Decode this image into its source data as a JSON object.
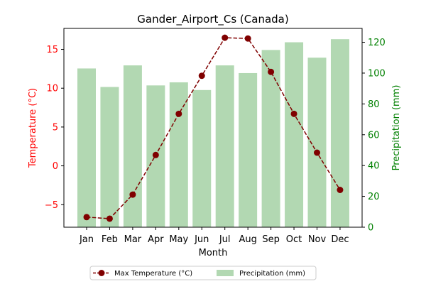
{
  "chart_data": {
    "type": "bar",
    "title": "Gander_Airport_Cs (Canada)",
    "xlabel": "Month",
    "ylabel_left": "Temperature (°C)",
    "ylabel_right": "Precipitation (mm)",
    "categories": [
      "Jan",
      "Feb",
      "Mar",
      "Apr",
      "May",
      "Jun",
      "Jul",
      "Aug",
      "Sep",
      "Oct",
      "Nov",
      "Dec"
    ],
    "left_ylim": [
      -7.9,
      17.7
    ],
    "left_ticks": [
      -5,
      0,
      5,
      10,
      15
    ],
    "right_ylim": [
      0,
      129
    ],
    "right_ticks": [
      0,
      20,
      40,
      60,
      80,
      100,
      120
    ],
    "grid": false,
    "legend_placement": "bottom-center",
    "series": [
      {
        "name": "Max Temperature (°C)",
        "type": "line",
        "axis": "left",
        "color": "#800000",
        "marker": "circle",
        "linestyle": "dashed",
        "values": [
          -6.6,
          -6.8,
          -3.7,
          1.4,
          6.7,
          11.6,
          16.5,
          16.4,
          12.1,
          6.7,
          1.7,
          -3.1
        ]
      },
      {
        "name": "Precipitation (mm)",
        "type": "bar",
        "axis": "right",
        "color": "#b2d8b2",
        "values": [
          103,
          91,
          105,
          92,
          94,
          89,
          105,
          100,
          115,
          120,
          110,
          122
        ]
      }
    ],
    "colors": {
      "left_axis": "#ff0000",
      "right_axis": "#008000"
    }
  }
}
